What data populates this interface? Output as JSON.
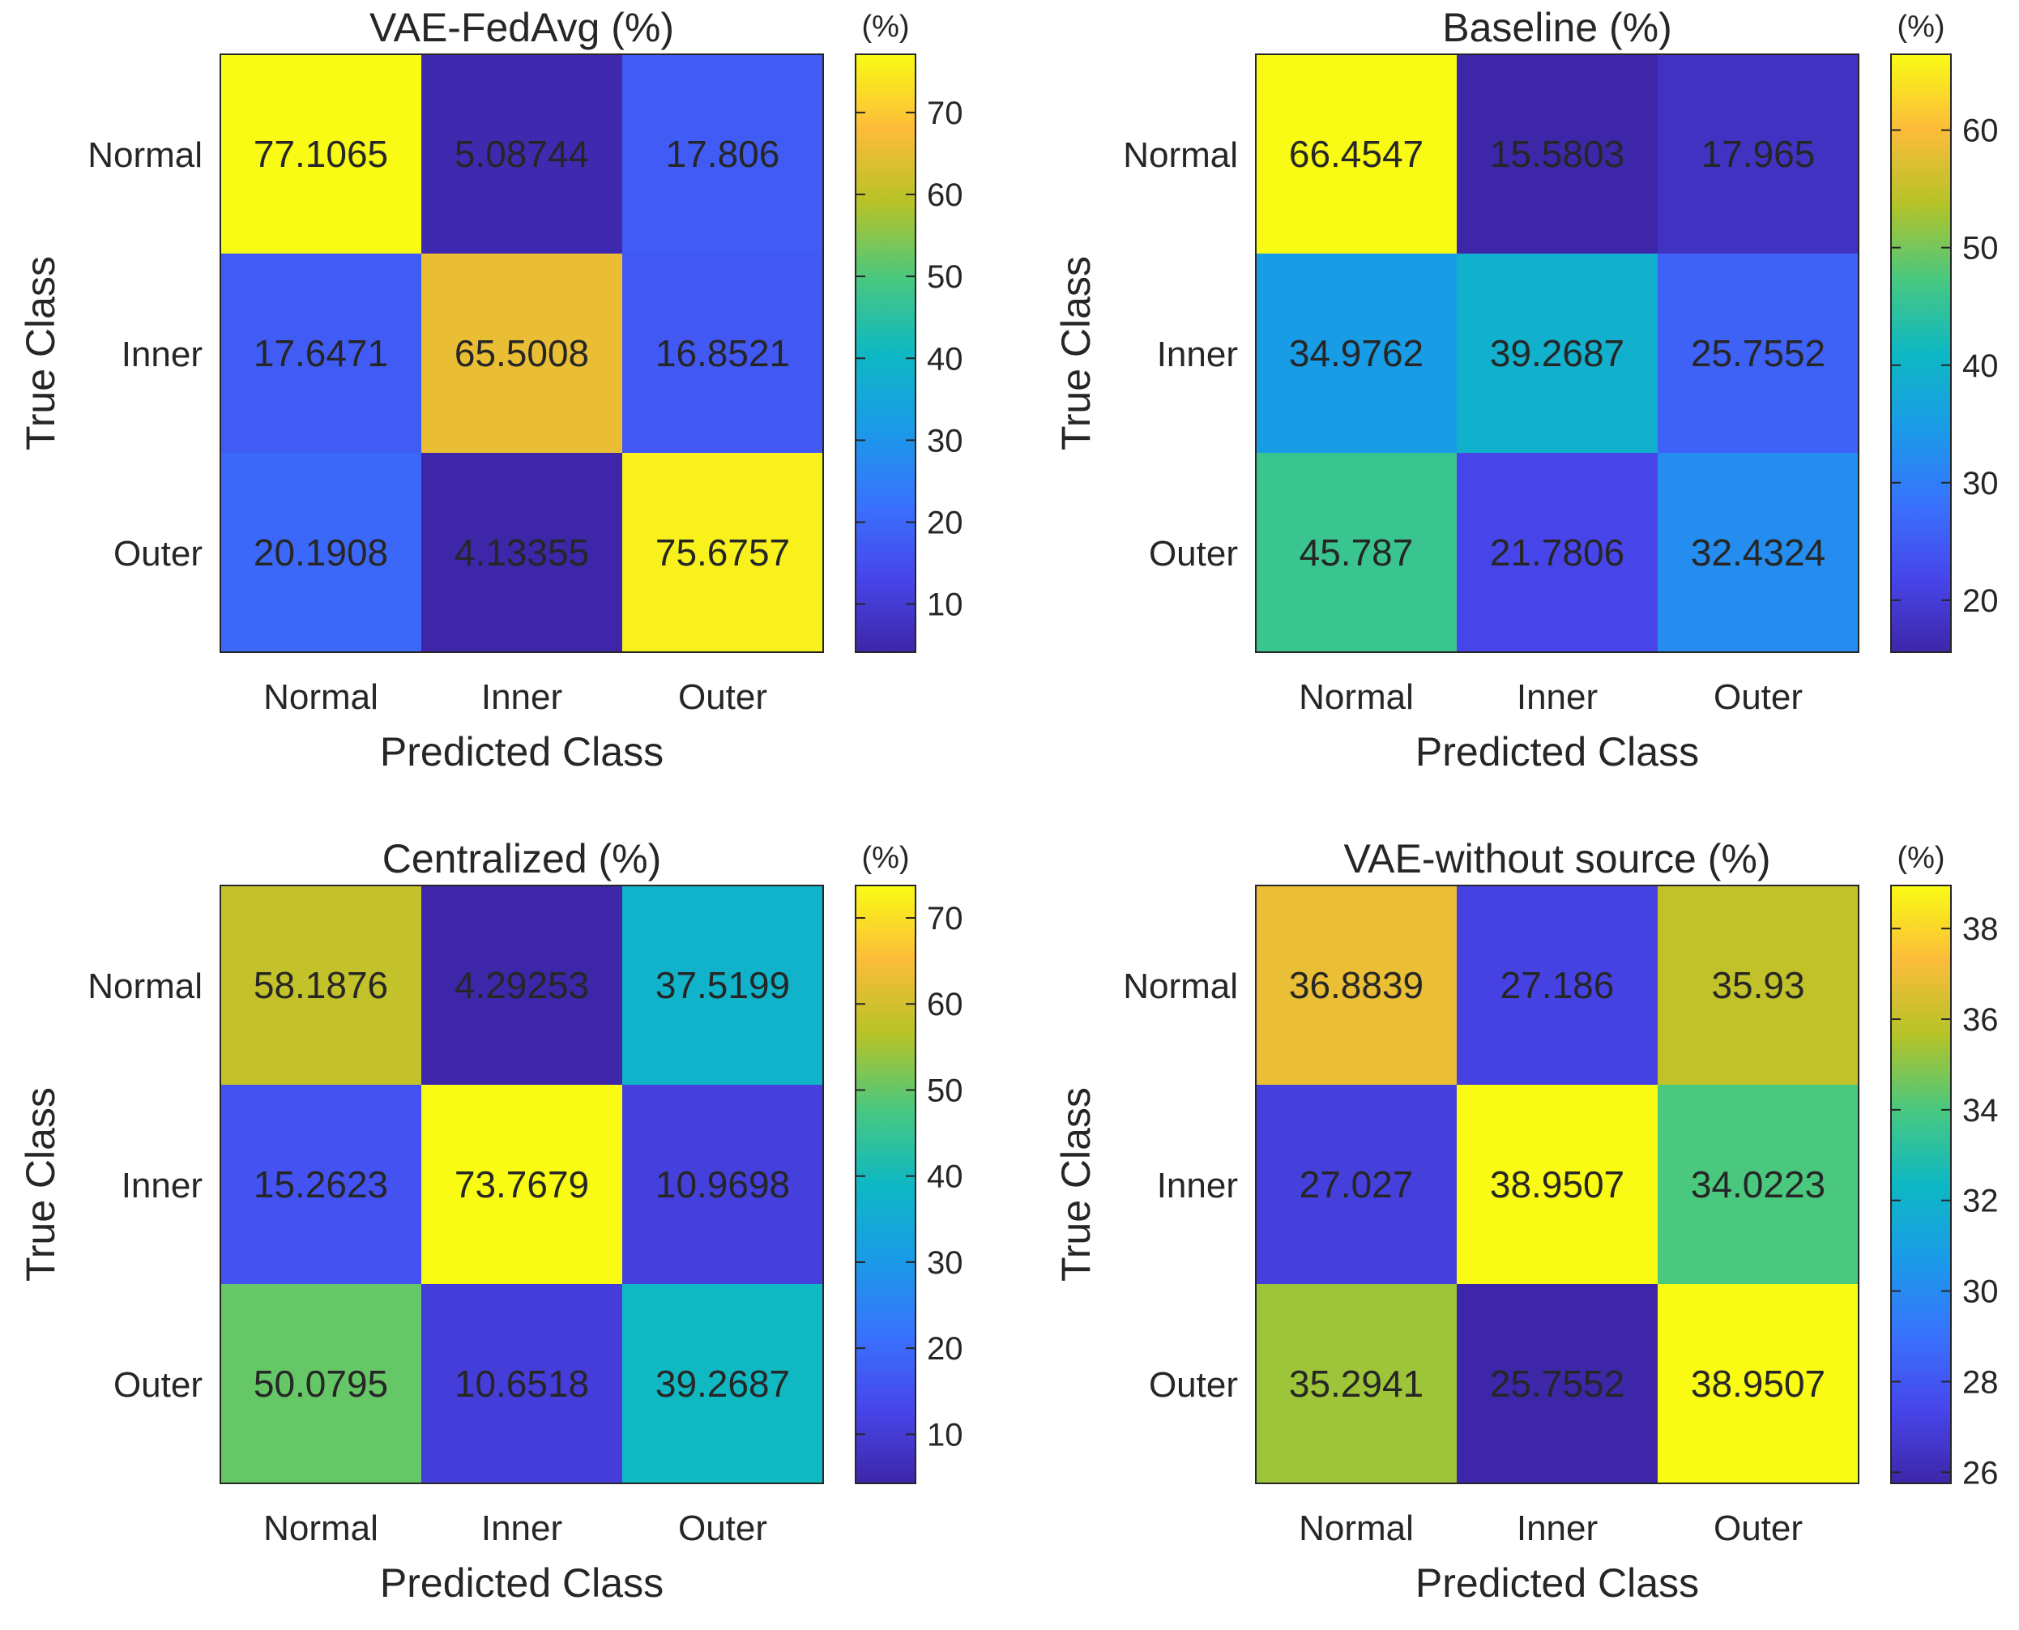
{
  "chart_data": [
    {
      "type": "heatmap",
      "title": "VAE-FedAvg (%)",
      "xlabel": "Predicted Class",
      "ylabel": "True Class",
      "categories": [
        "Normal",
        "Inner",
        "Outer"
      ],
      "values": [
        [
          77.1065,
          5.08744,
          17.806
        ],
        [
          17.6471,
          65.5008,
          16.8521
        ],
        [
          20.1908,
          4.13355,
          75.6757
        ]
      ],
      "labels": [
        [
          "77.1065",
          "5.08744",
          "17.806"
        ],
        [
          "17.6471",
          "65.5008",
          "16.8521"
        ],
        [
          "20.1908",
          "4.13355",
          "75.6757"
        ]
      ],
      "colorbar": {
        "unit": "(%)",
        "ticks": [
          10,
          20,
          30,
          40,
          50,
          60,
          70
        ]
      }
    },
    {
      "type": "heatmap",
      "title": "Baseline (%)",
      "xlabel": "Predicted Class",
      "ylabel": "True Class",
      "categories": [
        "Normal",
        "Inner",
        "Outer"
      ],
      "values": [
        [
          66.4547,
          15.5803,
          17.965
        ],
        [
          34.9762,
          39.2687,
          25.7552
        ],
        [
          45.787,
          21.7806,
          32.4324
        ]
      ],
      "labels": [
        [
          "66.4547",
          "15.5803",
          "17.965"
        ],
        [
          "34.9762",
          "39.2687",
          "25.7552"
        ],
        [
          "45.787",
          "21.7806",
          "32.4324"
        ]
      ],
      "colorbar": {
        "unit": "(%)",
        "ticks": [
          20,
          30,
          40,
          50,
          60
        ]
      }
    },
    {
      "type": "heatmap",
      "title": "Centralized (%)",
      "xlabel": "Predicted Class",
      "ylabel": "True Class",
      "categories": [
        "Normal",
        "Inner",
        "Outer"
      ],
      "values": [
        [
          58.1876,
          4.29253,
          37.5199
        ],
        [
          15.2623,
          73.7679,
          10.9698
        ],
        [
          50.0795,
          10.6518,
          39.2687
        ]
      ],
      "labels": [
        [
          "58.1876",
          "4.29253",
          "37.5199"
        ],
        [
          "15.2623",
          "73.7679",
          "10.9698"
        ],
        [
          "50.0795",
          "10.6518",
          "39.2687"
        ]
      ],
      "colorbar": {
        "unit": "(%)",
        "ticks": [
          10,
          20,
          30,
          40,
          50,
          60,
          70
        ]
      }
    },
    {
      "type": "heatmap",
      "title": "VAE-without source (%)",
      "xlabel": "Predicted Class",
      "ylabel": "True Class",
      "categories": [
        "Normal",
        "Inner",
        "Outer"
      ],
      "values": [
        [
          36.8839,
          27.186,
          35.93
        ],
        [
          27.027,
          38.9507,
          34.0223
        ],
        [
          35.2941,
          25.7552,
          38.9507
        ]
      ],
      "labels": [
        [
          "36.8839",
          "27.186",
          "35.93"
        ],
        [
          "27.027",
          "38.9507",
          "34.0223"
        ],
        [
          "35.2941",
          "25.7552",
          "38.9507"
        ]
      ],
      "colorbar": {
        "unit": "(%)",
        "ticks": [
          26,
          28,
          30,
          32,
          34,
          36,
          38
        ]
      }
    }
  ]
}
